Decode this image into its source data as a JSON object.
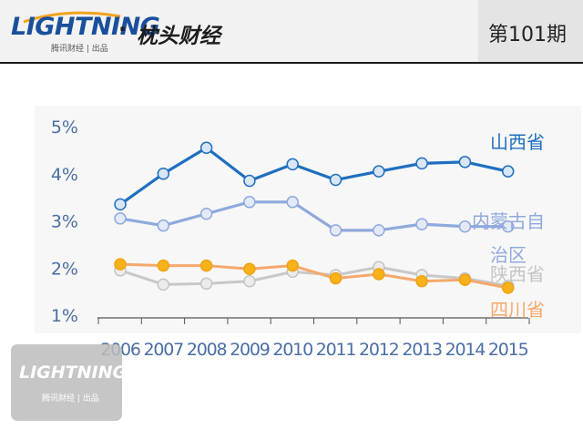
{
  "header": {
    "brand": "LIGHTNING",
    "brand_sub": "腾讯财经 | 出品",
    "separator": "·",
    "column_title": "枕头财经",
    "issue": "第101期"
  },
  "watermark": {
    "brand": "LIGHTNING",
    "sub": "腾讯财经 | 出品"
  },
  "colors": {
    "shanxi": "#1f6fbf",
    "neimenggu": "#8fa9dd",
    "shaanxi": "#c8c8c8",
    "sichuan": "#f5a86b",
    "sichuan_marker": "#f7b21a",
    "axis": "#4a6fa5"
  },
  "chart_data": {
    "type": "line",
    "categories": [
      "2006",
      "2007",
      "2008",
      "2009",
      "2010",
      "2011",
      "2012",
      "2013",
      "2014",
      "2015"
    ],
    "y_ticks": [
      "1%",
      "2%",
      "3%",
      "4%",
      "5%"
    ],
    "ylim": [
      1,
      5
    ],
    "grid": false,
    "series": [
      {
        "name": "山西省",
        "values": [
          3.35,
          4.0,
          4.55,
          3.85,
          4.2,
          3.87,
          4.05,
          4.22,
          4.25,
          4.05
        ]
      },
      {
        "name": "内蒙古自治区",
        "values": [
          3.05,
          2.9,
          3.15,
          3.4,
          3.4,
          2.8,
          2.8,
          2.93,
          2.88,
          2.88
        ]
      },
      {
        "name": "陕西省",
        "values": [
          1.95,
          1.65,
          1.67,
          1.72,
          1.92,
          1.85,
          2.02,
          1.85,
          1.78,
          1.62
        ]
      },
      {
        "name": "四川省",
        "values": [
          2.08,
          2.05,
          2.05,
          1.98,
          2.05,
          1.78,
          1.87,
          1.72,
          1.75,
          1.58
        ]
      }
    ],
    "series_labels": {
      "shanxi": "山西省",
      "neimenggu_line1": "内蒙古自",
      "neimenggu_line2": "治区",
      "shaanxi": "陕西省",
      "sichuan": "四川省"
    }
  }
}
